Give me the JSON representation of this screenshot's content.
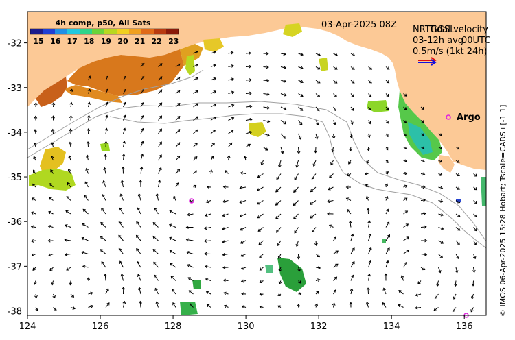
{
  "title": {
    "date": "03-Apr-2025 08Z",
    "product": "4h comp, p50, All Sats"
  },
  "colorbar": {
    "ticks": [
      "15",
      "16",
      "17",
      "18",
      "19",
      "20",
      "21",
      "22",
      "23"
    ],
    "colors": [
      "#1a1a8c",
      "#1f3fd4",
      "#1f8fe6",
      "#20c8e0",
      "#2fd48a",
      "#6ad43a",
      "#b8d821",
      "#f0d020",
      "#f0a020",
      "#e06a18",
      "#b83a10",
      "#8a1a0a"
    ]
  },
  "current_legend": {
    "product_line1": "NRTGGSL",
    "product_line1b": "Tidal velocity",
    "product_line2": "03-12h avg",
    "product_line2b": "00UTC",
    "scale_text": "0.5m/s (1kt 24h)",
    "arrow_colors": [
      "#e01010",
      "#1010e0"
    ]
  },
  "argo": {
    "label": "Argo",
    "marker_color": "#e020e0"
  },
  "axes": {
    "x_ticks": [
      "124",
      "126",
      "128",
      "130",
      "132",
      "134",
      "136"
    ],
    "y_ticks": [
      "-32",
      "-33",
      "-34",
      "-35",
      "-36",
      "-37",
      "-38"
    ],
    "lon_range": [
      124,
      136.6
    ],
    "lat_range": [
      -38.1,
      -31.3
    ]
  },
  "colors": {
    "land": "#fcc996",
    "sea": "#ffffff",
    "contour": "#a0a0a0",
    "arrow": "#000000"
  },
  "credit": "© IMOS 06-Apr-2025 15:28 Hobart; Tscale=CARS+[-1 1]"
}
